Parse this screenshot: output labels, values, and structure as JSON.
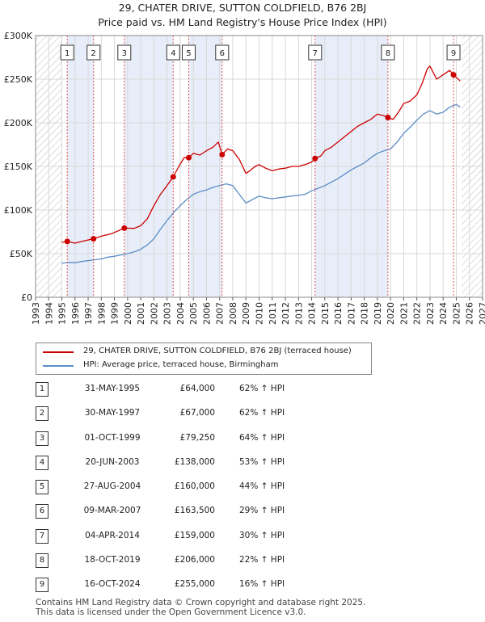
{
  "title_line1": "29, CHATER DRIVE, SUTTON COLDFIELD, B76 2BJ",
  "title_line2": "Price paid vs. HM Land Registry's House Price Index (HPI)",
  "colors": {
    "red": "#cc0000",
    "blue": "#5b8cc6",
    "shade": "#e8eef9",
    "grid": "#d8d8d8",
    "marker_line": "#e05050",
    "future_hatch": "#bbbbbb"
  },
  "legend": {
    "red_label": "29, CHATER DRIVE, SUTTON COLDFIELD, B76 2BJ (terraced house)",
    "blue_label": "HPI: Average price, terraced house, Birmingham"
  },
  "sales": [
    {
      "num": "1",
      "date": "31-MAY-1995",
      "price": "£64,000",
      "hpi": "62% ↑ HPI"
    },
    {
      "num": "2",
      "date": "30-MAY-1997",
      "price": "£67,000",
      "hpi": "62% ↑ HPI"
    },
    {
      "num": "3",
      "date": "01-OCT-1999",
      "price": "£79,250",
      "hpi": "64% ↑ HPI"
    },
    {
      "num": "4",
      "date": "20-JUN-2003",
      "price": "£138,000",
      "hpi": "53% ↑ HPI"
    },
    {
      "num": "5",
      "date": "27-AUG-2004",
      "price": "£160,000",
      "hpi": "44% ↑ HPI"
    },
    {
      "num": "6",
      "date": "09-MAR-2007",
      "price": "£163,500",
      "hpi": "29% ↑ HPI"
    },
    {
      "num": "7",
      "date": "04-APR-2014",
      "price": "£159,000",
      "hpi": "30% ↑ HPI"
    },
    {
      "num": "8",
      "date": "18-OCT-2019",
      "price": "£206,000",
      "hpi": "22% ↑ HPI"
    },
    {
      "num": "9",
      "date": "16-OCT-2024",
      "price": "£255,000",
      "hpi": "16% ↑ HPI"
    }
  ],
  "footer": {
    "line1": "Contains HM Land Registry data © Crown copyright and database right 2025.",
    "line2": "This data is licensed under the Open Government Licence v3.0."
  },
  "chart_data": {
    "type": "line",
    "title": "29, CHATER DRIVE, SUTTON COLDFIELD, B76 2BJ",
    "subtitle": "Price paid vs. HM Land Registry's House Price Index (HPI)",
    "xlim": [
      1993,
      2027
    ],
    "ylim": [
      0,
      300000
    ],
    "x_ticks": [
      1993,
      1994,
      1995,
      1996,
      1997,
      1998,
      1999,
      2000,
      2001,
      2002,
      2003,
      2004,
      2005,
      2006,
      2007,
      2008,
      2009,
      2010,
      2011,
      2012,
      2013,
      2014,
      2015,
      2016,
      2017,
      2018,
      2019,
      2020,
      2021,
      2022,
      2023,
      2024,
      2025,
      2026,
      2027
    ],
    "y_ticks": [
      0,
      50000,
      100000,
      150000,
      200000,
      250000,
      300000
    ],
    "y_tick_labels": [
      "£0",
      "£50K",
      "£100K",
      "£150K",
      "£200K",
      "£250K",
      "£300K"
    ],
    "hatched_before": 1995.0,
    "hatched_after": 2025.4,
    "sale_points": [
      {
        "label": "1",
        "x": 1995.41,
        "y": 64000
      },
      {
        "label": "2",
        "x": 1997.41,
        "y": 67000
      },
      {
        "label": "3",
        "x": 1999.75,
        "y": 79250
      },
      {
        "label": "4",
        "x": 2003.47,
        "y": 138000
      },
      {
        "label": "5",
        "x": 2004.65,
        "y": 160000
      },
      {
        "label": "6",
        "x": 2007.19,
        "y": 163500
      },
      {
        "label": "7",
        "x": 2014.26,
        "y": 159000
      },
      {
        "label": "8",
        "x": 2019.8,
        "y": 206000
      },
      {
        "label": "9",
        "x": 2024.79,
        "y": 255000
      }
    ],
    "series": [
      {
        "name": "29, CHATER DRIVE, SUTTON COLDFIELD, B76 2BJ (terraced house)",
        "color": "#cc0000",
        "x": [
          1995.0,
          1995.41,
          1996.0,
          1996.8,
          1997.41,
          1998.0,
          1998.8,
          1999.75,
          2000.5,
          2001.0,
          2001.5,
          2002.0,
          2002.5,
          2003.0,
          2003.47,
          2003.9,
          2004.3,
          2004.65,
          2005.0,
          2005.5,
          2006.0,
          2006.5,
          2006.9,
          2007.19,
          2007.6,
          2008.0,
          2008.5,
          2009.0,
          2009.3,
          2009.7,
          2010.0,
          2010.5,
          2011.0,
          2011.5,
          2012.0,
          2012.5,
          2013.0,
          2013.5,
          2014.0,
          2014.26,
          2014.7,
          2015.0,
          2015.5,
          2016.0,
          2016.5,
          2017.0,
          2017.5,
          2018.0,
          2018.5,
          2019.0,
          2019.5,
          2019.8,
          2020.2,
          2020.6,
          2021.0,
          2021.5,
          2022.0,
          2022.4,
          2022.8,
          2023.0,
          2023.5,
          2024.0,
          2024.5,
          2024.79,
          2025.0,
          2025.3
        ],
        "y": [
          63000,
          64000,
          62000,
          65000,
          67000,
          70000,
          73000,
          79250,
          79000,
          82000,
          90000,
          105000,
          118000,
          128000,
          138000,
          150000,
          160000,
          160000,
          165000,
          163000,
          168000,
          172000,
          178000,
          163500,
          170000,
          168000,
          158000,
          142000,
          145000,
          150000,
          152000,
          148000,
          145000,
          147000,
          148000,
          150000,
          150000,
          152000,
          155000,
          159000,
          162000,
          168000,
          172000,
          178000,
          184000,
          190000,
          196000,
          200000,
          204000,
          210000,
          208000,
          206000,
          204000,
          212000,
          222000,
          225000,
          232000,
          245000,
          262000,
          265000,
          250000,
          255000,
          260000,
          255000,
          252000,
          248000
        ]
      },
      {
        "name": "HPI: Average price, terraced house, Birmingham",
        "color": "#5b8cc6",
        "x": [
          1995.0,
          1995.5,
          1996.0,
          1996.5,
          1997.0,
          1997.5,
          1998.0,
          1998.5,
          1999.0,
          1999.5,
          2000.0,
          2000.5,
          2001.0,
          2001.5,
          2002.0,
          2002.5,
          2003.0,
          2003.5,
          2004.0,
          2004.5,
          2005.0,
          2005.5,
          2006.0,
          2006.5,
          2007.0,
          2007.5,
          2008.0,
          2008.5,
          2009.0,
          2009.5,
          2010.0,
          2010.5,
          2011.0,
          2011.5,
          2012.0,
          2012.5,
          2013.0,
          2013.5,
          2014.0,
          2014.5,
          2015.0,
          2015.5,
          2016.0,
          2016.5,
          2017.0,
          2017.5,
          2018.0,
          2018.5,
          2019.0,
          2019.5,
          2020.0,
          2020.5,
          2021.0,
          2021.5,
          2022.0,
          2022.5,
          2023.0,
          2023.5,
          2024.0,
          2024.5,
          2025.0,
          2025.3
        ],
        "y": [
          39000,
          40000,
          39500,
          41000,
          42000,
          43000,
          44000,
          46000,
          47000,
          48500,
          50000,
          52000,
          55000,
          60000,
          67000,
          78000,
          88000,
          97000,
          105000,
          112000,
          118000,
          121000,
          123000,
          126000,
          128000,
          130000,
          128000,
          118000,
          108000,
          112000,
          116000,
          114000,
          113000,
          114000,
          115000,
          116000,
          117000,
          118000,
          122000,
          125000,
          128000,
          132000,
          136000,
          141000,
          146000,
          150000,
          154000,
          160000,
          165000,
          168000,
          170000,
          178000,
          188000,
          195000,
          203000,
          210000,
          214000,
          210000,
          212000,
          218000,
          221000,
          218000
        ]
      }
    ]
  }
}
